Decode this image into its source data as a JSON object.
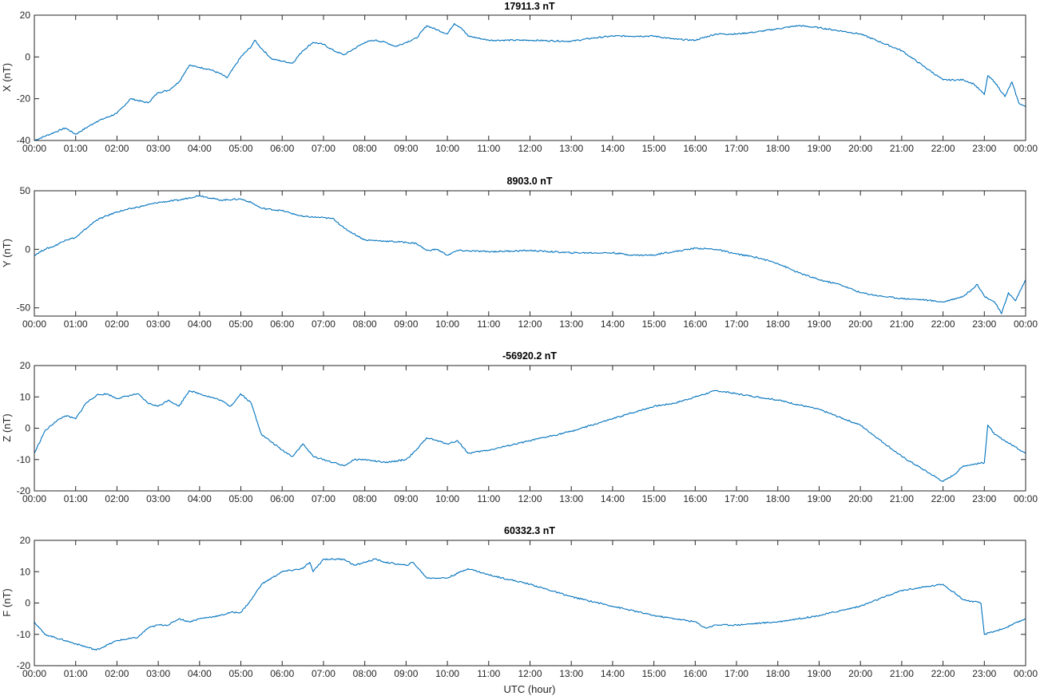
{
  "chart_data": [
    {
      "type": "line",
      "title": "17911.3 nT",
      "ylabel": "X (nT)",
      "xlabel": "",
      "ylim": [
        -40,
        20
      ],
      "yticks": [
        "-40",
        "-20",
        "0",
        "20"
      ],
      "xlim": [
        "00:00",
        "24:00"
      ],
      "xticks": [
        "00:00",
        "01:00",
        "02:00",
        "03:00",
        "04:00",
        "05:00",
        "06:00",
        "07:00",
        "08:00",
        "09:00",
        "10:00",
        "11:00",
        "12:00",
        "13:00",
        "14:00",
        "15:00",
        "16:00",
        "17:00",
        "18:00",
        "19:00",
        "20:00",
        "21:00",
        "22:00",
        "23:00",
        "00:00"
      ],
      "color": "#0072BD",
      "x": [
        "00:00",
        "00:30",
        "00:45",
        "01:00",
        "01:30",
        "02:00",
        "02:20",
        "02:45",
        "03:00",
        "03:15",
        "03:30",
        "03:45",
        "04:00",
        "04:15",
        "04:30",
        "04:40",
        "05:00",
        "05:15",
        "05:20",
        "05:30",
        "05:45",
        "06:00",
        "06:15",
        "06:30",
        "06:45",
        "07:00",
        "07:15",
        "07:30",
        "07:45",
        "08:00",
        "08:15",
        "08:30",
        "08:45",
        "09:00",
        "09:15",
        "09:30",
        "09:45",
        "10:00",
        "10:10",
        "10:20",
        "10:30",
        "11:00",
        "12:00",
        "13:00",
        "13:30",
        "14:00",
        "15:00",
        "15:30",
        "16:00",
        "16:30",
        "17:00",
        "17:30",
        "18:00",
        "18:30",
        "19:00",
        "19:30",
        "20:00",
        "20:30",
        "21:00",
        "21:30",
        "22:00",
        "22:30",
        "22:45",
        "23:00",
        "23:05",
        "23:15",
        "23:30",
        "23:40",
        "23:50",
        "24:00"
      ],
      "y": [
        -40,
        -36,
        -34,
        -37,
        -31,
        -27,
        -20,
        -22,
        -17,
        -16,
        -12,
        -4,
        -5,
        -6,
        -8,
        -10,
        0,
        5,
        8,
        4,
        -1,
        -2,
        -3,
        3,
        7,
        6,
        3,
        1,
        4,
        7,
        8,
        7,
        5,
        7,
        9,
        15,
        13,
        11,
        16,
        14,
        10,
        8,
        8,
        7.5,
        9,
        10,
        10,
        8.5,
        8,
        11,
        11,
        12,
        13.5,
        15,
        14,
        12.5,
        11,
        7,
        3,
        -4,
        -11,
        -11,
        -13,
        -18,
        -9,
        -12,
        -19,
        -12,
        -22,
        -24
      ]
    },
    {
      "type": "line",
      "title": "8903.0 nT",
      "ylabel": "Y (nT)",
      "xlabel": "",
      "ylim": [
        -57,
        50
      ],
      "yticks": [
        "-50",
        "0",
        "50"
      ],
      "xlim": [
        "00:00",
        "24:00"
      ],
      "xticks": [
        "00:00",
        "01:00",
        "02:00",
        "03:00",
        "04:00",
        "05:00",
        "06:00",
        "07:00",
        "08:00",
        "09:00",
        "10:00",
        "11:00",
        "12:00",
        "13:00",
        "14:00",
        "15:00",
        "16:00",
        "17:00",
        "18:00",
        "19:00",
        "20:00",
        "21:00",
        "22:00",
        "23:00",
        "00:00"
      ],
      "color": "#0072BD",
      "x": [
        "00:00",
        "00:15",
        "00:30",
        "00:45",
        "01:00",
        "01:30",
        "02:00",
        "02:30",
        "03:00",
        "03:30",
        "04:00",
        "04:30",
        "05:00",
        "05:15",
        "05:30",
        "06:00",
        "06:30",
        "07:00",
        "07:15",
        "07:30",
        "08:00",
        "08:30",
        "09:00",
        "09:15",
        "09:30",
        "09:45",
        "10:00",
        "10:15",
        "11:00",
        "12:00",
        "13:00",
        "14:00",
        "14:30",
        "15:00",
        "15:15",
        "15:30",
        "16:00",
        "16:30",
        "17:00",
        "17:30",
        "18:00",
        "18:30",
        "19:00",
        "19:30",
        "20:00",
        "20:30",
        "21:00",
        "21:30",
        "22:00",
        "22:30",
        "22:50",
        "23:00",
        "23:15",
        "23:25",
        "23:35",
        "23:45",
        "24:00"
      ],
      "y": [
        -5,
        0,
        3,
        8,
        10,
        25,
        32,
        36,
        40,
        42,
        46,
        42,
        43,
        40,
        35,
        33,
        28,
        27,
        26,
        18,
        8,
        7,
        6,
        5,
        -1,
        0,
        -5,
        -1,
        -2,
        -1,
        -3,
        -3,
        -5,
        -5,
        -3,
        -2,
        1,
        0,
        -4,
        -7,
        -12,
        -20,
        -26,
        -30,
        -37,
        -40,
        -42,
        -43,
        -45,
        -40,
        -30,
        -40,
        -45,
        -55,
        -37,
        -44,
        -26
      ]
    },
    {
      "type": "line",
      "title": "-56920.2 nT",
      "ylabel": "Z (nT)",
      "xlabel": "",
      "ylim": [
        -20,
        20
      ],
      "yticks": [
        "-20",
        "-10",
        "0",
        "10",
        "20"
      ],
      "xlim": [
        "00:00",
        "24:00"
      ],
      "xticks": [
        "00:00",
        "01:00",
        "02:00",
        "03:00",
        "04:00",
        "05:00",
        "06:00",
        "07:00",
        "08:00",
        "09:00",
        "10:00",
        "11:00",
        "12:00",
        "13:00",
        "14:00",
        "15:00",
        "16:00",
        "17:00",
        "18:00",
        "19:00",
        "20:00",
        "21:00",
        "22:00",
        "23:00",
        "00:00"
      ],
      "color": "#0072BD",
      "x": [
        "00:00",
        "00:15",
        "00:30",
        "00:45",
        "01:00",
        "01:15",
        "01:30",
        "01:45",
        "02:00",
        "02:30",
        "02:45",
        "03:00",
        "03:15",
        "03:30",
        "03:45",
        "04:00",
        "04:30",
        "04:45",
        "05:00",
        "05:15",
        "05:30",
        "06:00",
        "06:15",
        "06:30",
        "06:45",
        "07:00",
        "07:30",
        "07:45",
        "08:00",
        "08:30",
        "09:00",
        "09:15",
        "09:30",
        "10:00",
        "10:15",
        "10:30",
        "11:00",
        "12:00",
        "13:00",
        "14:00",
        "15:00",
        "15:30",
        "16:00",
        "16:30",
        "17:00",
        "18:00",
        "19:00",
        "20:00",
        "21:00",
        "22:00",
        "22:15",
        "22:30",
        "23:00",
        "23:05",
        "23:15",
        "23:30",
        "23:45",
        "24:00"
      ],
      "y": [
        -8,
        -1,
        2,
        4,
        3,
        8,
        10.5,
        11,
        9.5,
        11,
        8,
        7,
        9,
        7,
        12,
        11,
        9,
        7,
        11,
        8,
        -2,
        -7,
        -9,
        -5,
        -9,
        -10,
        -12,
        -10,
        -10,
        -11,
        -10,
        -7,
        -3,
        -5,
        -4,
        -8,
        -7,
        -4,
        -1,
        3,
        7,
        8,
        10,
        12,
        11,
        9,
        6,
        1,
        -9,
        -17,
        -15,
        -12,
        -11,
        1,
        -2,
        -4,
        -6,
        -8
      ]
    },
    {
      "type": "line",
      "title": "60332.3 nT",
      "ylabel": "F (nT)",
      "xlabel": "UTC (hour)",
      "ylim": [
        -20,
        20
      ],
      "yticks": [
        "-20",
        "-10",
        "0",
        "10",
        "20"
      ],
      "xlim": [
        "00:00",
        "24:00"
      ],
      "xticks": [
        "00:00",
        "01:00",
        "02:00",
        "03:00",
        "04:00",
        "05:00",
        "06:00",
        "07:00",
        "08:00",
        "09:00",
        "10:00",
        "11:00",
        "12:00",
        "13:00",
        "14:00",
        "15:00",
        "16:00",
        "17:00",
        "18:00",
        "19:00",
        "20:00",
        "21:00",
        "22:00",
        "23:00",
        "00:00"
      ],
      "color": "#0072BD",
      "x": [
        "00:00",
        "00:15",
        "00:30",
        "00:45",
        "01:00",
        "01:30",
        "02:00",
        "02:30",
        "02:45",
        "03:00",
        "03:15",
        "03:30",
        "03:45",
        "04:00",
        "04:30",
        "04:45",
        "05:00",
        "05:15",
        "05:30",
        "06:00",
        "06:30",
        "06:40",
        "06:45",
        "07:00",
        "07:30",
        "07:45",
        "08:00",
        "08:15",
        "08:30",
        "09:00",
        "09:10",
        "09:30",
        "10:00",
        "10:30",
        "11:00",
        "12:00",
        "13:00",
        "14:00",
        "15:00",
        "15:30",
        "16:00",
        "16:15",
        "16:30",
        "17:00",
        "18:00",
        "19:00",
        "20:00",
        "21:00",
        "22:00",
        "22:30",
        "22:55",
        "23:00",
        "23:30",
        "24:00"
      ],
      "y": [
        -6,
        -10,
        -11,
        -12,
        -13,
        -15,
        -12,
        -11,
        -8,
        -7,
        -7,
        -5,
        -6,
        -5,
        -4,
        -3,
        -3,
        1,
        6,
        10,
        11,
        13,
        10,
        14,
        14,
        12,
        13,
        14,
        13,
        12,
        13,
        8,
        8,
        11,
        9,
        6,
        2,
        -1,
        -4,
        -5,
        -6,
        -8,
        -7,
        -7,
        -6,
        -4,
        -1,
        4,
        6,
        1,
        0,
        -10,
        -8,
        -5
      ]
    }
  ]
}
